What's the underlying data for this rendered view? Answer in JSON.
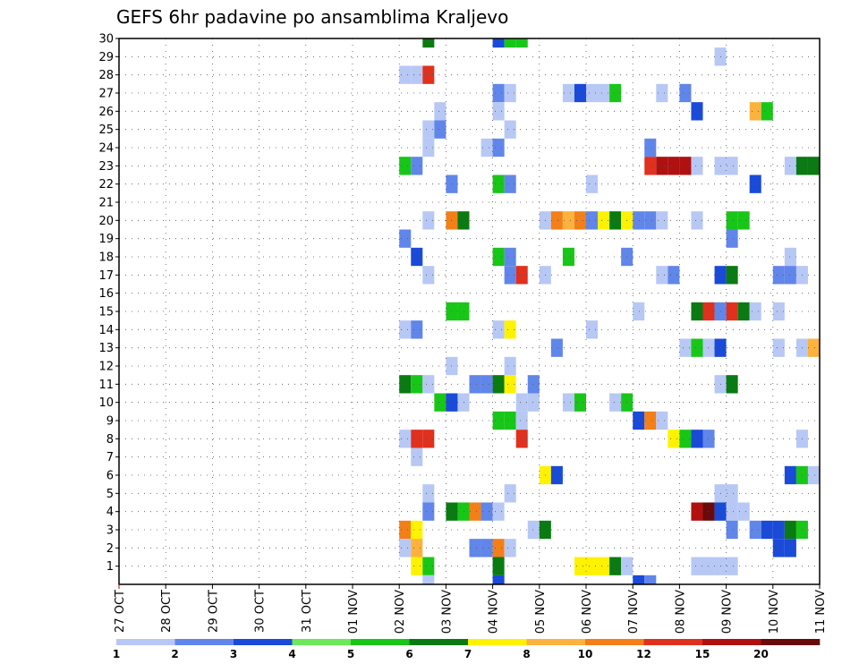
{
  "chart_data": {
    "type": "heatmap",
    "title": "GEFS 6hr padavine po ansamblima Kraljevo",
    "y_ticks": [
      "1",
      "2",
      "3",
      "4",
      "5",
      "6",
      "7",
      "8",
      "9",
      "10",
      "11",
      "12",
      "13",
      "14",
      "15",
      "16",
      "17",
      "18",
      "19",
      "20",
      "21",
      "22",
      "23",
      "24",
      "25",
      "26",
      "27",
      "28",
      "29",
      "30"
    ],
    "ylim": [
      0,
      30
    ],
    "x_ticks": [
      "27 OCT",
      "28 OCT",
      "29 OCT",
      "30 OCT",
      "31 OCT",
      "01 NOV",
      "02 NOV",
      "03 NOV",
      "04 NOV",
      "05 NOV",
      "06 NOV",
      "07 NOV",
      "08 NOV",
      "09 NOV",
      "10 NOV",
      "11 NOV"
    ],
    "x_unit": "days since 27 OCT 00z, 6-hour steps",
    "grid": true,
    "colorbar": {
      "labels": [
        "1",
        "2",
        "3",
        "4",
        "5",
        "6",
        "7",
        "8",
        "10",
        "12",
        "15",
        "20"
      ],
      "colors": [
        "#b7c8f5",
        "#6186ea",
        "#1a4ad8",
        "#6ce85a",
        "#18c618",
        "#0a7a12",
        "#fff200",
        "#fcb23c",
        "#f37f18",
        "#e0301e",
        "#b01010",
        "#6a0a0a"
      ]
    },
    "cells": [
      [
        30,
        6.5,
        6
      ],
      [
        30,
        8.0,
        3
      ],
      [
        30,
        8.25,
        5
      ],
      [
        30,
        8.5,
        5
      ],
      [
        29,
        12.75,
        1
      ],
      [
        28,
        6.0,
        1
      ],
      [
        28,
        6.25,
        1
      ],
      [
        28,
        6.5,
        12
      ],
      [
        27,
        8.0,
        2
      ],
      [
        27,
        8.25,
        1
      ],
      [
        27,
        9.5,
        1
      ],
      [
        27,
        9.75,
        3
      ],
      [
        27,
        10.0,
        1
      ],
      [
        27,
        10.25,
        1
      ],
      [
        27,
        10.5,
        5
      ],
      [
        27,
        11.5,
        1
      ],
      [
        27,
        12.0,
        2
      ],
      [
        26,
        6.75,
        1
      ],
      [
        26,
        8.0,
        1
      ],
      [
        26,
        12.25,
        3
      ],
      [
        26,
        13.5,
        8
      ],
      [
        26,
        13.75,
        5
      ],
      [
        25,
        6.5,
        1
      ],
      [
        25,
        6.75,
        2
      ],
      [
        25,
        8.25,
        1
      ],
      [
        24,
        6.5,
        1
      ],
      [
        24,
        7.75,
        1
      ],
      [
        24,
        8.0,
        2
      ],
      [
        24,
        11.25,
        2
      ],
      [
        23,
        6.0,
        5
      ],
      [
        23,
        6.25,
        2
      ],
      [
        23,
        11.25,
        12
      ],
      [
        23,
        11.5,
        15
      ],
      [
        23,
        11.75,
        15
      ],
      [
        23,
        12.0,
        15
      ],
      [
        23,
        12.25,
        1
      ],
      [
        23,
        12.75,
        1
      ],
      [
        23,
        13.0,
        1
      ],
      [
        23,
        14.25,
        1
      ],
      [
        23,
        14.5,
        6
      ],
      [
        23,
        14.75,
        6
      ],
      [
        22,
        7.0,
        2
      ],
      [
        22,
        8.0,
        5
      ],
      [
        22,
        8.25,
        2
      ],
      [
        22,
        10.0,
        1
      ],
      [
        22,
        13.5,
        3
      ],
      [
        20,
        6.5,
        1
      ],
      [
        20,
        7.0,
        10
      ],
      [
        20,
        7.25,
        6
      ],
      [
        20,
        9.0,
        1
      ],
      [
        20,
        9.25,
        10
      ],
      [
        20,
        9.5,
        8
      ],
      [
        20,
        9.75,
        10
      ],
      [
        20,
        10.0,
        2
      ],
      [
        20,
        10.25,
        7
      ],
      [
        20,
        10.5,
        6
      ],
      [
        20,
        10.75,
        7
      ],
      [
        20,
        11.0,
        2
      ],
      [
        20,
        11.25,
        2
      ],
      [
        20,
        11.5,
        1
      ],
      [
        20,
        12.25,
        1
      ],
      [
        20,
        13.0,
        5
      ],
      [
        20,
        13.25,
        5
      ],
      [
        19,
        6.0,
        2
      ],
      [
        19,
        13.0,
        2
      ],
      [
        18,
        6.25,
        3
      ],
      [
        18,
        8.0,
        5
      ],
      [
        18,
        8.25,
        2
      ],
      [
        18,
        9.5,
        5
      ],
      [
        18,
        10.75,
        2
      ],
      [
        18,
        14.25,
        1
      ],
      [
        17,
        6.5,
        1
      ],
      [
        17,
        8.25,
        2
      ],
      [
        17,
        8.5,
        12
      ],
      [
        17,
        9.0,
        1
      ],
      [
        17,
        11.5,
        1
      ],
      [
        17,
        11.75,
        2
      ],
      [
        17,
        12.75,
        3
      ],
      [
        17,
        13.0,
        6
      ],
      [
        17,
        14.0,
        2
      ],
      [
        17,
        14.25,
        2
      ],
      [
        17,
        14.5,
        1
      ],
      [
        15,
        7.0,
        5
      ],
      [
        15,
        7.25,
        5
      ],
      [
        15,
        11.0,
        1
      ],
      [
        15,
        12.25,
        6
      ],
      [
        15,
        12.5,
        12
      ],
      [
        15,
        12.75,
        2
      ],
      [
        15,
        13.0,
        12
      ],
      [
        15,
        13.25,
        6
      ],
      [
        15,
        13.5,
        1
      ],
      [
        15,
        14.0,
        1
      ],
      [
        14,
        6.0,
        1
      ],
      [
        14,
        6.25,
        2
      ],
      [
        14,
        8.0,
        1
      ],
      [
        14,
        8.25,
        7
      ],
      [
        14,
        10.0,
        1
      ],
      [
        13,
        9.25,
        2
      ],
      [
        13,
        12.0,
        1
      ],
      [
        13,
        12.25,
        5
      ],
      [
        13,
        12.5,
        1
      ],
      [
        13,
        12.75,
        3
      ],
      [
        13,
        14.0,
        1
      ],
      [
        13,
        14.5,
        1
      ],
      [
        13,
        14.75,
        8
      ],
      [
        12,
        7.0,
        1
      ],
      [
        12,
        8.25,
        1
      ],
      [
        11,
        6.0,
        6
      ],
      [
        11,
        6.25,
        5
      ],
      [
        11,
        6.5,
        1
      ],
      [
        11,
        7.5,
        2
      ],
      [
        11,
        7.75,
        2
      ],
      [
        11,
        8.0,
        6
      ],
      [
        11,
        8.25,
        7
      ],
      [
        11,
        8.75,
        2
      ],
      [
        11,
        12.75,
        1
      ],
      [
        11,
        13.0,
        6
      ],
      [
        10,
        6.75,
        5
      ],
      [
        10,
        7.0,
        3
      ],
      [
        10,
        7.25,
        1
      ],
      [
        10,
        8.5,
        1
      ],
      [
        10,
        8.75,
        1
      ],
      [
        10,
        9.5,
        1
      ],
      [
        10,
        9.75,
        5
      ],
      [
        10,
        10.5,
        1
      ],
      [
        10,
        10.75,
        5
      ],
      [
        9,
        8.0,
        5
      ],
      [
        9,
        8.25,
        5
      ],
      [
        9,
        8.5,
        1
      ],
      [
        9,
        11.0,
        3
      ],
      [
        9,
        11.25,
        10
      ],
      [
        9,
        11.5,
        1
      ],
      [
        8,
        6.0,
        1
      ],
      [
        8,
        6.25,
        12
      ],
      [
        8,
        6.5,
        12
      ],
      [
        8,
        8.5,
        12
      ],
      [
        8,
        11.75,
        7
      ],
      [
        8,
        12.0,
        5
      ],
      [
        8,
        12.25,
        3
      ],
      [
        8,
        12.5,
        2
      ],
      [
        8,
        14.5,
        1
      ],
      [
        7,
        6.25,
        1
      ],
      [
        6,
        9.0,
        7
      ],
      [
        6,
        9.25,
        3
      ],
      [
        6,
        14.25,
        3
      ],
      [
        6,
        14.5,
        5
      ],
      [
        6,
        14.75,
        1
      ],
      [
        5,
        6.5,
        1
      ],
      [
        5,
        8.25,
        1
      ],
      [
        5,
        12.75,
        1
      ],
      [
        5,
        13.0,
        1
      ],
      [
        4,
        6.5,
        2
      ],
      [
        4,
        7.0,
        6
      ],
      [
        4,
        7.25,
        5
      ],
      [
        4,
        7.5,
        10
      ],
      [
        4,
        7.75,
        2
      ],
      [
        4,
        8.0,
        1
      ],
      [
        4,
        12.25,
        15
      ],
      [
        4,
        12.5,
        20
      ],
      [
        4,
        12.75,
        3
      ],
      [
        4,
        13.0,
        1
      ],
      [
        4,
        13.25,
        1
      ],
      [
        3,
        6.0,
        10
      ],
      [
        3,
        6.25,
        7
      ],
      [
        3,
        8.75,
        1
      ],
      [
        3,
        9.0,
        6
      ],
      [
        3,
        13.0,
        2
      ],
      [
        3,
        13.5,
        2
      ],
      [
        3,
        13.75,
        3
      ],
      [
        3,
        14.0,
        3
      ],
      [
        3,
        14.25,
        6
      ],
      [
        3,
        14.5,
        5
      ],
      [
        2,
        6.0,
        1
      ],
      [
        2,
        6.25,
        8
      ],
      [
        2,
        7.5,
        2
      ],
      [
        2,
        7.75,
        2
      ],
      [
        2,
        8.0,
        10
      ],
      [
        2,
        8.25,
        1
      ],
      [
        2,
        14.0,
        3
      ],
      [
        2,
        14.25,
        3
      ],
      [
        1,
        6.25,
        7
      ],
      [
        1,
        6.5,
        5
      ],
      [
        1,
        8.0,
        6
      ],
      [
        1,
        9.75,
        7
      ],
      [
        1,
        10.0,
        7
      ],
      [
        1,
        10.25,
        7
      ],
      [
        1,
        10.5,
        6
      ],
      [
        1,
        10.75,
        1
      ],
      [
        1,
        12.25,
        1
      ],
      [
        1,
        12.5,
        1
      ],
      [
        1,
        12.75,
        1
      ],
      [
        1,
        13.0,
        1
      ],
      [
        0,
        6.5,
        1
      ],
      [
        0,
        8.0,
        3
      ],
      [
        0,
        11.0,
        3
      ],
      [
        0,
        11.25,
        2
      ]
    ]
  }
}
